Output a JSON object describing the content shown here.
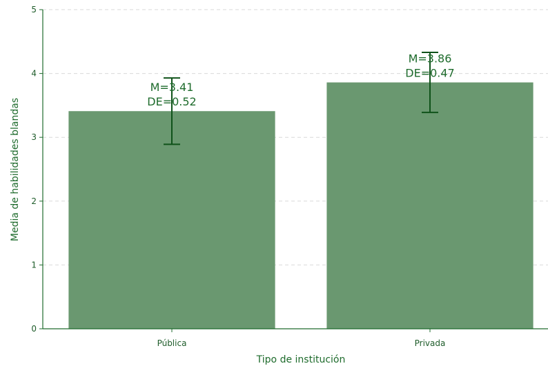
{
  "colors": {
    "bar": "#6a9870",
    "axis": "#1e6b2c",
    "error_bar": "#0f5219",
    "grid": "#d9d9d9"
  },
  "chart_data": {
    "type": "bar",
    "categories": [
      "Pública",
      "Privada"
    ],
    "values": [
      3.41,
      3.86
    ],
    "errors": [
      0.52,
      0.47
    ],
    "bar_labels": [
      [
        "M=3.41",
        "DE=0.52"
      ],
      [
        "M=3.86",
        "DE=0.47"
      ]
    ],
    "title": "",
    "xlabel": "Tipo de institución",
    "ylabel": "Media de habilidades blandas",
    "ylim": [
      0,
      5
    ],
    "yticks": [
      0,
      1,
      2,
      3,
      4,
      5
    ],
    "grid": "y",
    "legend": "none"
  }
}
